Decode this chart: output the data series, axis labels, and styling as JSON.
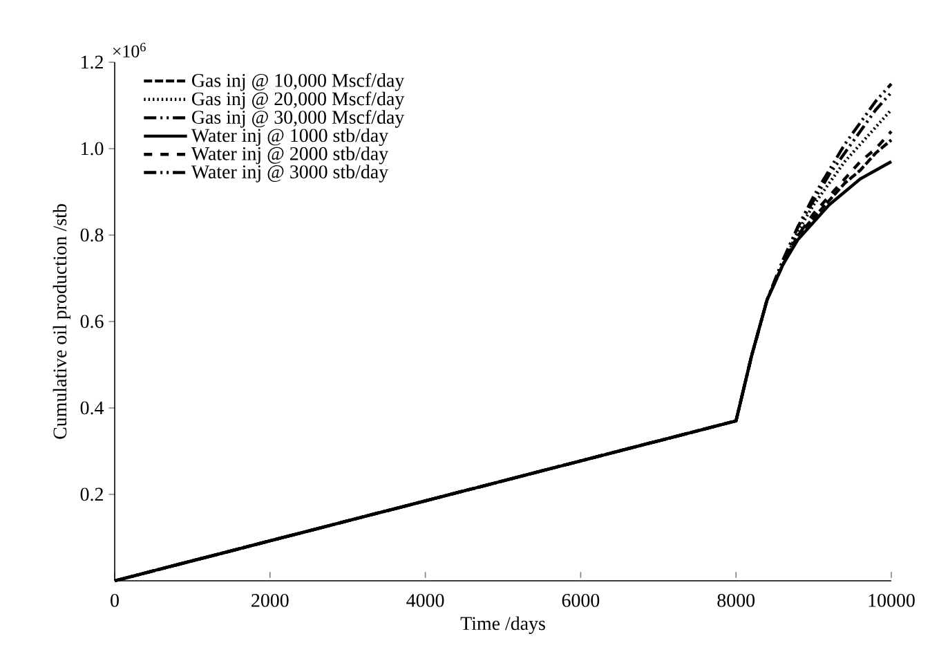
{
  "chart_data": {
    "type": "line",
    "xlabel": "Time /days",
    "ylabel": "Cumulative oil production /stb",
    "annotations": [
      "×10$^{6}$"
    ],
    "x": [
      0,
      8000,
      8200,
      8400,
      8600,
      8800,
      9000,
      9200,
      9400,
      9600,
      9800,
      10000
    ],
    "series": [
      {
        "name": "Gas inj @ 10,000 Mscf/day",
        "color": "#000000",
        "line_style": "dashed",
        "values": [
          0,
          0.37,
          0.52,
          0.65,
          0.73,
          0.8,
          0.84,
          0.88,
          0.92,
          0.95,
          0.99,
          1.02
        ]
      },
      {
        "name": "Gas inj @ 20,000 Mscf/day",
        "color": "#000000",
        "line_style": "dotted",
        "values": [
          0,
          0.37,
          0.52,
          0.65,
          0.73,
          0.81,
          0.87,
          0.92,
          0.97,
          1.01,
          1.05,
          1.09
        ]
      },
      {
        "name": "Gas inj @ 30,000 Mscf/day",
        "color": "#000000",
        "line_style": "dashdotdotted",
        "values": [
          0,
          0.37,
          0.52,
          0.65,
          0.74,
          0.82,
          0.88,
          0.94,
          0.99,
          1.04,
          1.09,
          1.13
        ]
      },
      {
        "name": "Water inj @ 1000 stb/day",
        "color": "#000000",
        "line_style": "solid",
        "values": [
          0,
          0.37,
          0.52,
          0.65,
          0.73,
          0.79,
          0.83,
          0.87,
          0.9,
          0.93,
          0.95,
          0.97
        ]
      },
      {
        "name": "Water inj @ 2000 stb/day",
        "color": "#000000",
        "line_style": "loosely dashed",
        "values": [
          0,
          0.37,
          0.52,
          0.65,
          0.73,
          0.8,
          0.85,
          0.89,
          0.93,
          0.97,
          1.0,
          1.04
        ]
      },
      {
        "name": "Water inj @ 3000 stb/day",
        "color": "#000000",
        "line_style": "dashdotdotted",
        "values": [
          0,
          0.37,
          0.52,
          0.65,
          0.74,
          0.82,
          0.89,
          0.95,
          1.01,
          1.06,
          1.11,
          1.15
        ]
      }
    ],
    "xlim": [
      0,
      10000
    ],
    "ylim": [
      0,
      1.2
    ],
    "xticks": [
      0,
      2000,
      4000,
      6000,
      8000,
      10000
    ],
    "yticks": [
      0.2,
      0.4,
      0.6,
      0.8,
      {
        "value": 1.0,
        "label": "1.0"
      },
      1.2
    ],
    "grid": false,
    "legend": "top left",
    "marker": "none"
  }
}
